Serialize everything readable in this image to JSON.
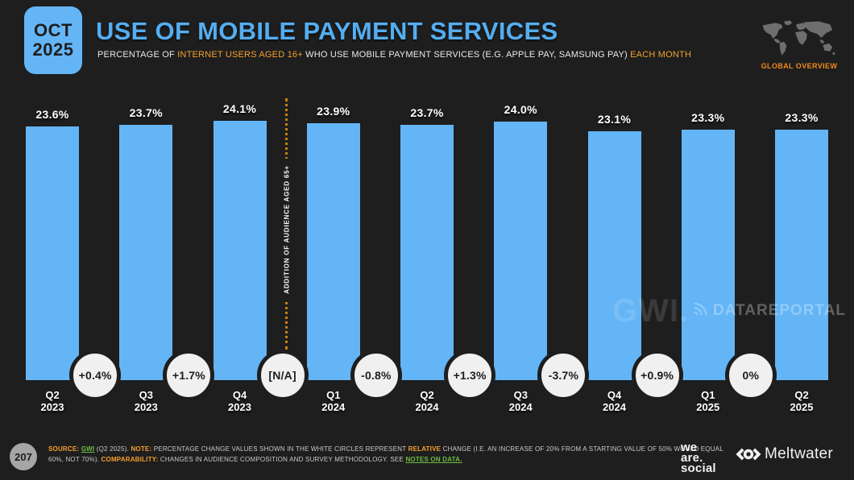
{
  "header": {
    "date_line1": "OCT",
    "date_line2": "2025",
    "title": "USE OF MOBILE PAYMENT SERVICES",
    "subtitle_prefix": "PERCENTAGE OF ",
    "subtitle_highlight1": "INTERNET USERS AGED 16+",
    "subtitle_middle": " WHO USE MOBILE PAYMENT SERVICES (E.G. APPLE PAY, SAMSUNG PAY) ",
    "subtitle_highlight2": "EACH MONTH",
    "region_label": "GLOBAL OVERVIEW"
  },
  "chart_data": {
    "type": "bar",
    "title": "USE OF MOBILE PAYMENT SERVICES",
    "categories": [
      "Q2 2023",
      "Q3 2023",
      "Q4 2023",
      "Q1 2024",
      "Q2 2024",
      "Q3 2024",
      "Q4 2024",
      "Q1 2025",
      "Q2 2025"
    ],
    "values": [
      23.6,
      23.7,
      24.1,
      23.9,
      23.7,
      24.0,
      23.1,
      23.3,
      23.3
    ],
    "value_labels": [
      "23.6%",
      "23.7%",
      "24.1%",
      "23.9%",
      "23.7%",
      "24.0%",
      "23.1%",
      "23.3%",
      "23.3%"
    ],
    "change_labels": [
      "+0.4%",
      "+1.7%",
      "[N/A]",
      "-0.8%",
      "+1.3%",
      "-3.7%",
      "+0.9%",
      "0%"
    ],
    "annotation": "ADDITION OF AUDIENCE AGED 65+",
    "annotation_between": [
      "Q4 2023",
      "Q1 2024"
    ],
    "xlabel": "",
    "ylabel": "",
    "ylim": [
      0,
      24.1
    ],
    "grid": false,
    "legend": false,
    "bar_color": "#64B5F6"
  },
  "watermarks": {
    "gwi": "GWI.",
    "datareportal": "DATAREPORTAL"
  },
  "footer": {
    "page_number": "207",
    "line1": {
      "source_label": "SOURCE:",
      "source_link": "GWI",
      "source_rest": " (Q2 2025). ",
      "note_label": "NOTE:",
      "note_text": " PERCENTAGE CHANGE VALUES SHOWN IN THE WHITE CIRCLES REPRESENT ",
      "note_highlight": "RELATIVE",
      "note_tail": " CHANGE (I.E. AN INCREASE OF 20% FROM A STARTING VALUE OF 50% WOULD EQUAL"
    },
    "line2": {
      "head": "60%, NOT 70%). ",
      "comparability_label": "COMPARABILITY:",
      "comparability_text": " CHANGES IN AUDIENCE COMPOSITION AND SURVEY METHODOLOGY. SEE ",
      "notes_link": "NOTES ON DATA."
    },
    "wearesocial_lines": [
      "we",
      "are.",
      "social"
    ],
    "meltwater": "Meltwater"
  },
  "colors": {
    "background": "#1E1E1E",
    "bar_blue": "#64B5F6",
    "title_blue": "#55ADEF",
    "accent_orange": "#F5A02E",
    "divider_orange": "#C4820E",
    "link_green": "#6FBE44",
    "circle_fill": "#F0F0F0"
  }
}
